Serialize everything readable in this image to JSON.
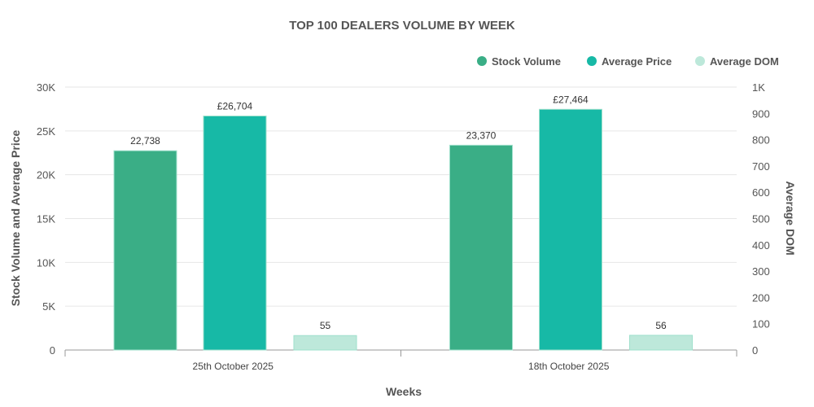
{
  "chart_data": {
    "type": "bar",
    "title": "TOP 100 DEALERS VOLUME BY WEEK",
    "xlabel": "Weeks",
    "ylabel": "Stock Volume and Average Price",
    "y2label": "Average DOM",
    "categories": [
      "25th October 2025",
      "18th October 2025"
    ],
    "series": [
      {
        "name": "Stock Volume",
        "axis": "left",
        "color": "#3aae86",
        "values": [
          22738,
          23370
        ],
        "labels": [
          "22,738",
          "23,370"
        ]
      },
      {
        "name": "Average Price",
        "axis": "left",
        "color": "#17b9a6",
        "values": [
          26704,
          27464
        ],
        "labels": [
          "£26,704",
          "£27,464"
        ]
      },
      {
        "name": "Average DOM",
        "axis": "right",
        "color": "#bde8da",
        "values": [
          55,
          56
        ],
        "labels": [
          "55",
          "56"
        ]
      }
    ],
    "ylim": [
      0,
      30000
    ],
    "yticks": [
      "0",
      "5K",
      "10K",
      "15K",
      "20K",
      "25K",
      "30K"
    ],
    "y2lim": [
      0,
      1000
    ],
    "y2ticks": [
      "0",
      "100",
      "200",
      "300",
      "400",
      "500",
      "600",
      "700",
      "800",
      "900",
      "1K"
    ],
    "grid": true,
    "legend": "top-right"
  }
}
